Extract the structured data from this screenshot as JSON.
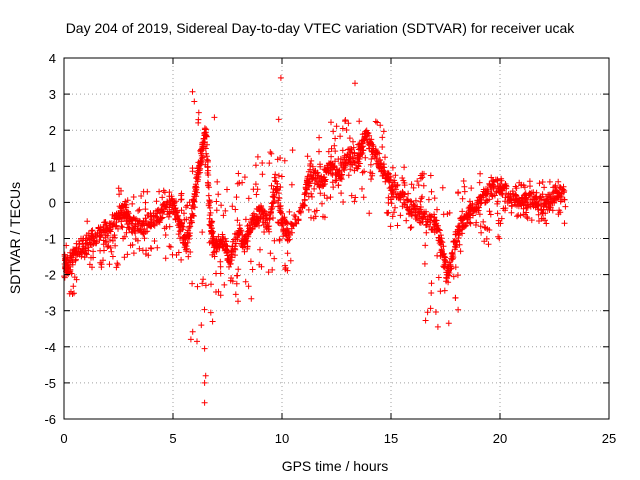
{
  "chart_data": {
    "type": "scatter",
    "title": "Day 204 of 2019, Sidereal Day-to-day VTEC variation (SDTVAR) for receiver ucak",
    "xlabel": "GPS time / hours",
    "ylabel": "SDTVAR / TECUs",
    "xlim": [
      0,
      25
    ],
    "ylim": [
      -6,
      4
    ],
    "xticks": [
      0,
      5,
      10,
      15,
      20,
      25
    ],
    "yticks": [
      -6,
      -5,
      -4,
      -3,
      -2,
      -1,
      0,
      1,
      2,
      3,
      4
    ],
    "grid": true,
    "marker": "+",
    "series": [
      {
        "name": "SDTVAR",
        "color": "#ff0000",
        "trend": {
          "x": [
            0,
            0.2,
            0.5,
            1.0,
            1.5,
            2.0,
            2.5,
            2.8,
            3.0,
            3.5,
            4.0,
            4.5,
            5.0,
            5.3,
            5.6,
            5.9,
            6.1,
            6.3,
            6.5,
            6.7,
            6.9,
            7.3,
            7.6,
            8.0,
            8.3,
            8.7,
            9.0,
            9.4,
            9.7,
            10.0,
            10.3,
            11.0,
            11.3,
            11.8,
            12.2,
            12.6,
            13.0,
            13.5,
            13.8,
            14.2,
            14.6,
            15.0,
            15.5,
            16.0,
            16.5,
            17.0,
            17.3,
            17.6,
            17.9,
            18.2,
            18.6,
            19.0,
            19.5,
            20.0,
            20.5,
            21.0,
            21.5,
            22.0,
            22.5,
            23.0
          ],
          "y": [
            -1.6,
            -1.8,
            -1.4,
            -1.1,
            -0.9,
            -0.7,
            -0.4,
            -0.2,
            -0.6,
            -0.7,
            -0.5,
            -0.3,
            -0.1,
            -0.6,
            -1.2,
            -0.3,
            0.6,
            1.3,
            2.0,
            -0.4,
            -1.3,
            -1.0,
            -1.6,
            -0.8,
            -1.2,
            -0.5,
            -0.3,
            -0.6,
            0.6,
            -0.5,
            -0.9,
            0.0,
            0.9,
            0.5,
            1.1,
            0.6,
            1.3,
            1.1,
            1.9,
            1.4,
            0.9,
            0.5,
            0.1,
            -0.2,
            -0.4,
            -0.6,
            -1.1,
            -2.1,
            -1.2,
            -0.6,
            -0.3,
            0.0,
            0.3,
            0.5,
            0.1,
            0.0,
            0.1,
            -0.1,
            0.1,
            0.3
          ]
        },
        "bands": [
          {
            "x": [
              0.0,
              0.6
            ],
            "y": [
              -2.6,
              -1.1
            ]
          },
          {
            "x": [
              0.6,
              2.5
            ],
            "y": [
              -1.8,
              -0.5
            ]
          },
          {
            "x": [
              2.5,
              5.8
            ],
            "y": [
              -1.6,
              0.4
            ]
          },
          {
            "x": [
              5.8,
              6.9
            ],
            "y": [
              -3.8,
              3.2
            ]
          },
          {
            "x": [
              6.9,
              8.6
            ],
            "y": [
              -2.8,
              0.6
            ]
          },
          {
            "x": [
              8.6,
              10.5
            ],
            "y": [
              -2.0,
              1.5
            ]
          },
          {
            "x": [
              11.0,
              12.2
            ],
            "y": [
              -0.5,
              1.8
            ]
          },
          {
            "x": [
              12.2,
              14.8
            ],
            "y": [
              0.0,
              2.3
            ]
          },
          {
            "x": [
              14.8,
              16.5
            ],
            "y": [
              -0.8,
              1.0
            ]
          },
          {
            "x": [
              16.5,
              18.2
            ],
            "y": [
              -3.3,
              0.8
            ]
          },
          {
            "x": [
              18.2,
              20.0
            ],
            "y": [
              -1.2,
              0.8
            ]
          },
          {
            "x": [
              20.0,
              23.0
            ],
            "y": [
              -0.6,
              0.6
            ]
          }
        ],
        "outliers": [
          {
            "x": 6.45,
            "y": -5.55
          },
          {
            "x": 6.45,
            "y": -5.0
          },
          {
            "x": 6.5,
            "y": -4.8
          },
          {
            "x": 6.45,
            "y": -4.05
          },
          {
            "x": 6.1,
            "y": -3.85
          },
          {
            "x": 9.95,
            "y": 3.45
          },
          {
            "x": 9.85,
            "y": 2.3
          },
          {
            "x": 10.15,
            "y": -1.85
          },
          {
            "x": 13.35,
            "y": 3.3
          },
          {
            "x": 14.6,
            "y": 1.8
          },
          {
            "x": 14.0,
            "y": -0.3
          },
          {
            "x": 6.3,
            "y": -3.4
          },
          {
            "x": 17.15,
            "y": -3.45
          },
          {
            "x": 17.65,
            "y": -3.35
          },
          {
            "x": 8.0,
            "y": 0.8
          },
          {
            "x": 8.3,
            "y": 0.7
          }
        ]
      }
    ]
  }
}
